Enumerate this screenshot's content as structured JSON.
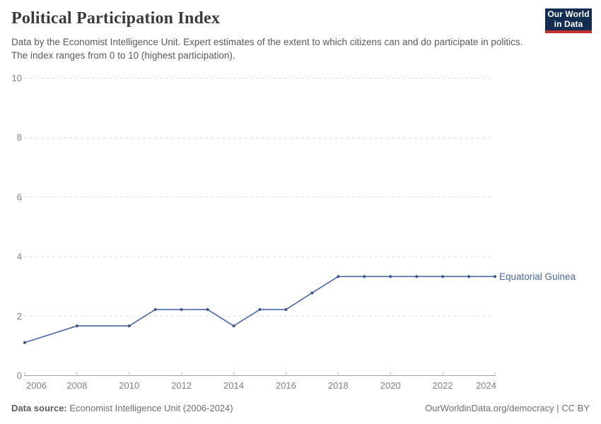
{
  "header": {
    "title": "Political Participation Index",
    "subtitle": "Data by the Economist Intelligence Unit. Expert estimates of the extent to which citizens can and do participate in politics. The index ranges from 0 to 10 (highest participation).",
    "logo": {
      "line1": "Our World",
      "line2": "in Data"
    }
  },
  "chart_data": {
    "type": "line",
    "title": "Political Participation Index",
    "xlabel": "",
    "ylabel": "",
    "xlim": [
      2006,
      2024
    ],
    "ylim": [
      0,
      10
    ],
    "xticks": [
      2006,
      2008,
      2010,
      2012,
      2014,
      2016,
      2018,
      2020,
      2022,
      2024
    ],
    "yticks": [
      0,
      2,
      4,
      6,
      8,
      10
    ],
    "grid": "horizontal-dashed",
    "legend_position": "end-of-line-label",
    "series": [
      {
        "name": "Equatorial Guinea",
        "color": "#4C68A1",
        "points": [
          {
            "year": 2006,
            "value": 1.11
          },
          {
            "year": 2008,
            "value": 1.67
          },
          {
            "year": 2010,
            "value": 1.67
          },
          {
            "year": 2011,
            "value": 2.22
          },
          {
            "year": 2012,
            "value": 2.22
          },
          {
            "year": 2013,
            "value": 2.22
          },
          {
            "year": 2014,
            "value": 1.67
          },
          {
            "year": 2015,
            "value": 2.22
          },
          {
            "year": 2016,
            "value": 2.22
          },
          {
            "year": 2017,
            "value": 2.78
          },
          {
            "year": 2018,
            "value": 3.33
          },
          {
            "year": 2019,
            "value": 3.33
          },
          {
            "year": 2020,
            "value": 3.33
          },
          {
            "year": 2021,
            "value": 3.33
          },
          {
            "year": 2022,
            "value": 3.33
          },
          {
            "year": 2023,
            "value": 3.33
          },
          {
            "year": 2024,
            "value": 3.33
          }
        ]
      }
    ]
  },
  "footer": {
    "source_label": "Data source:",
    "source_value": " Economist Intelligence Unit (2006-2024)",
    "credit": "OurWorldinData.org/democracy | CC BY"
  },
  "colors": {
    "line": "#4C68A1",
    "marker": "#3D5889",
    "grid": "#dcdcdc",
    "axis": "#a1a1a1",
    "tick": "#c2c2c2",
    "axis_label": "#818181",
    "title": "#3b3b3b",
    "subtitle": "#5a5a5a",
    "footer": "#6e6e6e",
    "logo_bg": "#132c52",
    "logo_accent": "#c62f31"
  }
}
